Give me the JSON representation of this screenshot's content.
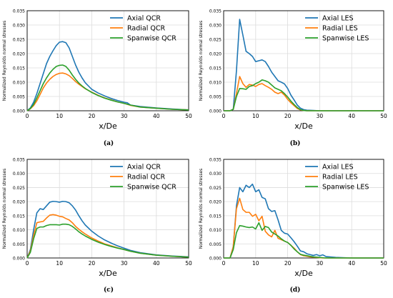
{
  "chart_data": [
    {
      "panel": "(a)",
      "type": "line",
      "xlabel": "x/De",
      "ylabel": "Normalized Reynolds normal stresses",
      "xlim": [
        0,
        50
      ],
      "ylim": [
        0,
        0.035
      ],
      "xticks": [
        0,
        10,
        20,
        30,
        40,
        50
      ],
      "yticks": [
        0,
        0.005,
        0.01,
        0.015,
        0.02,
        0.025,
        0.03,
        0.035
      ],
      "grid": true,
      "legend": "top-right",
      "series": [
        {
          "name": "Axial QCR",
          "color": "#1f77b4",
          "x": [
            0,
            1,
            2,
            3,
            4,
            5,
            6,
            7,
            8,
            9,
            10,
            11,
            12,
            13,
            14,
            15,
            16,
            17,
            18,
            20,
            22,
            24,
            26,
            28,
            30,
            31,
            32,
            35,
            40,
            45,
            50
          ],
          "y": [
            0,
            0.001,
            0.003,
            0.006,
            0.0095,
            0.013,
            0.0165,
            0.019,
            0.021,
            0.0228,
            0.024,
            0.0242,
            0.0238,
            0.022,
            0.019,
            0.016,
            0.0135,
            0.0115,
            0.0098,
            0.0075,
            0.0062,
            0.0052,
            0.0043,
            0.0036,
            0.003,
            0.0028,
            0.002,
            0.0015,
            0.001,
            0.0006,
            0.0003
          ]
        },
        {
          "name": "Radial QCR",
          "color": "#ff7f0e",
          "x": [
            0,
            1,
            2,
            3,
            4,
            5,
            6,
            7,
            8,
            9,
            10,
            11,
            12,
            13,
            14,
            15,
            16,
            17,
            18,
            20,
            22,
            24,
            26,
            28,
            30,
            32,
            35,
            40,
            45,
            50
          ],
          "y": [
            0,
            0.0007,
            0.0018,
            0.0035,
            0.0057,
            0.008,
            0.0097,
            0.011,
            0.012,
            0.0127,
            0.0131,
            0.0132,
            0.0129,
            0.0123,
            0.0113,
            0.0102,
            0.0093,
            0.0085,
            0.0077,
            0.0065,
            0.0054,
            0.0045,
            0.0038,
            0.0031,
            0.0026,
            0.0019,
            0.0013,
            0.0009,
            0.0005,
            0.0003
          ]
        },
        {
          "name": "Spanwise QCR",
          "color": "#2ca02c",
          "x": [
            0,
            1,
            2,
            3,
            4,
            5,
            6,
            7,
            8,
            9,
            10,
            11,
            12,
            13,
            14,
            15,
            16,
            17,
            18,
            20,
            22,
            24,
            26,
            28,
            30,
            32,
            35,
            40,
            45,
            50
          ],
          "y": [
            0,
            0.0008,
            0.0022,
            0.0045,
            0.007,
            0.0095,
            0.0115,
            0.0132,
            0.0145,
            0.0155,
            0.0159,
            0.016,
            0.0155,
            0.0142,
            0.0125,
            0.011,
            0.0097,
            0.0087,
            0.0078,
            0.0064,
            0.0053,
            0.0044,
            0.0037,
            0.0031,
            0.0026,
            0.002,
            0.0013,
            0.0009,
            0.0005,
            0.0003
          ]
        }
      ]
    },
    {
      "panel": "(b)",
      "type": "line",
      "xlabel": "x/De",
      "ylabel": "Normalized Reynolds normal stresses",
      "xlim": [
        0,
        50
      ],
      "ylim": [
        0,
        0.035
      ],
      "xticks": [
        0,
        10,
        20,
        30,
        40,
        50
      ],
      "yticks": [
        0,
        0.005,
        0.01,
        0.015,
        0.02,
        0.025,
        0.03,
        0.035
      ],
      "grid": true,
      "legend": "top-right",
      "series": [
        {
          "name": "Axial LES",
          "color": "#1f77b4",
          "x": [
            0,
            2,
            3,
            4,
            5,
            6,
            7,
            8,
            9,
            10,
            11,
            12,
            13,
            14,
            15,
            16,
            17,
            18,
            19,
            20,
            21,
            22,
            23,
            24,
            25,
            26,
            28,
            30,
            35,
            40,
            45,
            50
          ],
          "y": [
            0,
            0,
            0.0005,
            0.014,
            0.032,
            0.0265,
            0.0208,
            0.02,
            0.019,
            0.0172,
            0.0175,
            0.0178,
            0.0172,
            0.0155,
            0.0135,
            0.012,
            0.0105,
            0.01,
            0.0094,
            0.0078,
            0.0055,
            0.0038,
            0.002,
            0.0009,
            0.0004,
            0.0002,
            0.0001,
            0,
            0,
            0,
            0,
            0
          ]
        },
        {
          "name": "Radial LES",
          "color": "#ff7f0e",
          "x": [
            0,
            2,
            3,
            4,
            5,
            6,
            7,
            8,
            9,
            10,
            11,
            12,
            13,
            14,
            15,
            16,
            17,
            18,
            19,
            20,
            21,
            22,
            23,
            24,
            25,
            26,
            28,
            30,
            35,
            40,
            45,
            50
          ],
          "y": [
            0,
            0,
            0.0005,
            0.006,
            0.012,
            0.0095,
            0.0082,
            0.0092,
            0.009,
            0.0085,
            0.0092,
            0.0095,
            0.0088,
            0.0082,
            0.0075,
            0.0065,
            0.006,
            0.0065,
            0.0055,
            0.004,
            0.0028,
            0.0018,
            0.0008,
            0.0003,
            0.0001,
            0,
            0,
            0,
            0,
            0,
            0,
            0
          ]
        },
        {
          "name": "Spanwise LES",
          "color": "#2ca02c",
          "x": [
            0,
            2,
            3,
            4,
            5,
            6,
            7,
            8,
            9,
            10,
            11,
            12,
            13,
            14,
            15,
            16,
            17,
            18,
            19,
            20,
            21,
            22,
            23,
            24,
            25,
            26,
            28,
            30,
            35,
            40,
            45,
            50
          ],
          "y": [
            0,
            0,
            0.0005,
            0.005,
            0.0078,
            0.0077,
            0.0075,
            0.0085,
            0.0088,
            0.0095,
            0.01,
            0.0108,
            0.0105,
            0.01,
            0.009,
            0.008,
            0.0075,
            0.007,
            0.006,
            0.0048,
            0.0034,
            0.0022,
            0.0011,
            0.0004,
            0.0001,
            0,
            0,
            0,
            0,
            0,
            0,
            0
          ]
        }
      ]
    },
    {
      "panel": "(c)",
      "type": "line",
      "xlabel": "x/De",
      "ylabel": "Normalized Reynolds normal stresses",
      "xlim": [
        0,
        50
      ],
      "ylim": [
        0,
        0.035
      ],
      "xticks": [
        0,
        10,
        20,
        30,
        40,
        50
      ],
      "yticks": [
        0,
        0.005,
        0.01,
        0.015,
        0.02,
        0.025,
        0.03,
        0.035
      ],
      "grid": true,
      "legend": "top-right",
      "series": [
        {
          "name": "Axial QCR",
          "color": "#1f77b4",
          "x": [
            0,
            1,
            2,
            3,
            4,
            5,
            6,
            7,
            8,
            9,
            10,
            11,
            12,
            13,
            14,
            15,
            16,
            17,
            18,
            20,
            22,
            24,
            26,
            28,
            30,
            32,
            35,
            40,
            45,
            50
          ],
          "y": [
            0,
            0.003,
            0.01,
            0.016,
            0.0175,
            0.0172,
            0.0185,
            0.0198,
            0.0201,
            0.02,
            0.0198,
            0.0201,
            0.02,
            0.0196,
            0.0185,
            0.017,
            0.015,
            0.0132,
            0.0117,
            0.0095,
            0.0078,
            0.0064,
            0.0053,
            0.0043,
            0.0035,
            0.0027,
            0.0019,
            0.0011,
            0.0007,
            0.0004
          ]
        },
        {
          "name": "Radial QCR",
          "color": "#ff7f0e",
          "x": [
            0,
            1,
            2,
            3,
            4,
            5,
            6,
            7,
            8,
            9,
            10,
            11,
            12,
            13,
            14,
            15,
            16,
            17,
            18,
            20,
            22,
            24,
            26,
            28,
            30,
            32,
            35,
            40,
            45,
            50
          ],
          "y": [
            0,
            0.0025,
            0.008,
            0.0125,
            0.0128,
            0.013,
            0.0142,
            0.0152,
            0.0154,
            0.0152,
            0.0148,
            0.0146,
            0.014,
            0.0135,
            0.0125,
            0.0112,
            0.0102,
            0.0093,
            0.0085,
            0.0071,
            0.006,
            0.005,
            0.0043,
            0.0036,
            0.003,
            0.0024,
            0.0017,
            0.001,
            0.0006,
            0.0003
          ]
        },
        {
          "name": "Spanwise QCR",
          "color": "#2ca02c",
          "x": [
            0,
            1,
            2,
            3,
            4,
            5,
            6,
            7,
            8,
            9,
            10,
            11,
            12,
            13,
            14,
            15,
            16,
            17,
            18,
            20,
            22,
            24,
            26,
            28,
            30,
            32,
            35,
            40,
            45,
            50
          ],
          "y": [
            0,
            0.002,
            0.0068,
            0.0105,
            0.011,
            0.011,
            0.0115,
            0.0118,
            0.0118,
            0.0118,
            0.0117,
            0.012,
            0.012,
            0.0118,
            0.0112,
            0.0103,
            0.0093,
            0.0085,
            0.0078,
            0.0066,
            0.0056,
            0.0048,
            0.0041,
            0.0035,
            0.003,
            0.0024,
            0.0017,
            0.001,
            0.0006,
            0.0003
          ]
        }
      ]
    },
    {
      "panel": "(d)",
      "type": "line",
      "xlabel": "x/De",
      "ylabel": "Normalized Reynolds normal stresses",
      "xlim": [
        0,
        50
      ],
      "ylim": [
        0,
        0.035
      ],
      "xticks": [
        0,
        10,
        20,
        30,
        40,
        50
      ],
      "yticks": [
        0,
        0.005,
        0.01,
        0.015,
        0.02,
        0.025,
        0.03,
        0.035
      ],
      "grid": true,
      "legend": "top-right",
      "series": [
        {
          "name": "Axial LES",
          "color": "#1f77b4",
          "x": [
            0,
            2,
            3,
            4,
            5,
            6,
            7,
            8,
            9,
            10,
            11,
            12,
            13,
            14,
            15,
            16,
            17,
            18,
            19,
            20,
            21,
            22,
            23,
            24,
            25,
            26,
            27,
            28,
            29,
            30,
            31,
            32,
            35,
            40,
            45,
            50
          ],
          "y": [
            0,
            0,
            0.004,
            0.0185,
            0.025,
            0.0235,
            0.0258,
            0.025,
            0.0262,
            0.0235,
            0.0242,
            0.0215,
            0.021,
            0.0175,
            0.0165,
            0.0168,
            0.0135,
            0.0098,
            0.0088,
            0.0085,
            0.0072,
            0.0058,
            0.0042,
            0.0025,
            0.0022,
            0.0015,
            0.0012,
            0.0009,
            0.0012,
            0.0008,
            0.0011,
            0.0005,
            0.0002,
            0,
            0,
            0
          ]
        },
        {
          "name": "Radial LES",
          "color": "#ff7f0e",
          "x": [
            0,
            2,
            3,
            4,
            5,
            6,
            7,
            8,
            9,
            10,
            11,
            12,
            13,
            14,
            15,
            16,
            17,
            18,
            19,
            20,
            21,
            22,
            23,
            24,
            25,
            26,
            27,
            28,
            29,
            30,
            31,
            32,
            35,
            40,
            45,
            50
          ],
          "y": [
            0,
            0,
            0.004,
            0.0175,
            0.0212,
            0.0172,
            0.0162,
            0.0162,
            0.0148,
            0.0155,
            0.0132,
            0.0148,
            0.0095,
            0.0082,
            0.0075,
            0.0098,
            0.007,
            0.0065,
            0.006,
            0.0055,
            0.0045,
            0.0035,
            0.0022,
            0.0012,
            0.0008,
            0.0006,
            0.0004,
            0.0003,
            0.0002,
            0.0001,
            0,
            0,
            0,
            0,
            0,
            0
          ]
        },
        {
          "name": "Spanwise LES",
          "color": "#2ca02c",
          "x": [
            0,
            2,
            3,
            4,
            5,
            6,
            7,
            8,
            9,
            10,
            11,
            12,
            13,
            14,
            15,
            16,
            17,
            18,
            19,
            20,
            21,
            22,
            23,
            24,
            25,
            26,
            27,
            28,
            29,
            30,
            31,
            32,
            35,
            40,
            45,
            50
          ],
          "y": [
            0,
            0,
            0.003,
            0.009,
            0.0115,
            0.0113,
            0.011,
            0.0108,
            0.011,
            0.0103,
            0.0125,
            0.0098,
            0.0112,
            0.0108,
            0.0092,
            0.0085,
            0.0078,
            0.0068,
            0.006,
            0.0055,
            0.0045,
            0.0032,
            0.0022,
            0.0013,
            0.001,
            0.0008,
            0.0006,
            0.0004,
            0.0003,
            0.0002,
            0.0001,
            0,
            0,
            0,
            0,
            0
          ]
        }
      ]
    }
  ]
}
